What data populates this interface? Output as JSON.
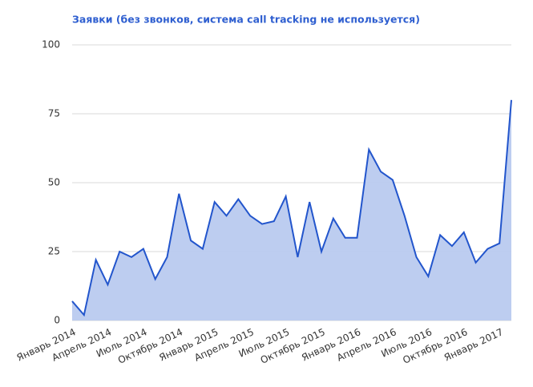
{
  "chart_data": {
    "type": "area",
    "title": "Заявки (без звонков, система call tracking не используется)",
    "categories": [
      "Январь 2014",
      null,
      null,
      "Апрель 2014",
      null,
      null,
      "Июль 2014",
      null,
      null,
      "Октябрь 2014",
      null,
      null,
      "Январь 2015",
      null,
      null,
      "Апрель 2015",
      null,
      null,
      "Июль 2015",
      null,
      null,
      "Октябрь 2015",
      null,
      null,
      "Январь 2016",
      null,
      null,
      "Апрель 2016",
      null,
      null,
      "Июль 2016",
      null,
      null,
      "Октябрь 2016",
      null,
      null,
      "Январь 2017",
      null
    ],
    "values": [
      7,
      2,
      22,
      13,
      25,
      23,
      26,
      15,
      23,
      46,
      29,
      26,
      43,
      38,
      44,
      38,
      35,
      36,
      45,
      23,
      43,
      25,
      37,
      30,
      30,
      62,
      54,
      51,
      38,
      23,
      16,
      31,
      27,
      32,
      21,
      26,
      28,
      80
    ],
    "color": "#2255cc",
    "fill": "#b9caef",
    "ylim": [
      0,
      100
    ],
    "yticks": [
      0,
      25,
      50,
      75,
      100
    ],
    "grid": true
  }
}
